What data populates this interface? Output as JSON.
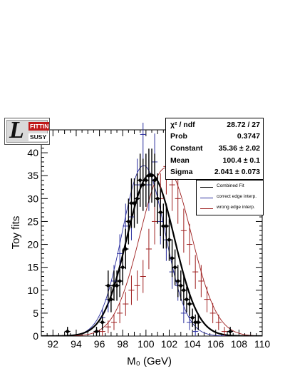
{
  "logo": {
    "top_text": "FITTINO",
    "bottom_text": "SUSY",
    "glyph": "L"
  },
  "stats": {
    "chi2_label": "χ² / ndf",
    "chi2_value": "28.72 / 27",
    "prob_label": "Prob",
    "prob_value": "0.3747",
    "constant_label": "Constant",
    "constant_value": "35.36 ± 2.02",
    "mean_label": "Mean",
    "mean_value": "100.4 ± 0.1",
    "sigma_label": "Sigma",
    "sigma_value": "2.041 ± 0.073"
  },
  "legend": [
    {
      "label": "Combined Fit",
      "color": "#000000"
    },
    {
      "label": "correct edge interp.",
      "color": "#2b2f9e"
    },
    {
      "label": "wrong edge interp.",
      "color": "#9e1f1f"
    }
  ],
  "chart_data": {
    "type": "scatter",
    "xlabel": "M₀ (GeV)",
    "ylabel": "Toy fits",
    "xlim": [
      91,
      110
    ],
    "ylim": [
      0,
      45
    ],
    "x_ticks": [
      92,
      94,
      96,
      98,
      100,
      102,
      104,
      106,
      108,
      110
    ],
    "y_ticks": [
      0,
      5,
      10,
      15,
      20,
      25,
      30,
      35,
      40
    ],
    "series": [
      {
        "name": "Combined Fit",
        "color": "#000000",
        "marker": "diamond",
        "x": [
          93.25,
          95.75,
          96.25,
          96.75,
          97.0,
          97.25,
          97.5,
          97.75,
          98.0,
          98.25,
          98.5,
          98.75,
          99.0,
          99.25,
          99.5,
          99.75,
          100.0,
          100.25,
          100.5,
          100.75,
          101.0,
          101.25,
          101.5,
          101.75,
          102.0,
          102.25,
          102.5,
          102.75,
          103.0,
          103.25,
          103.5,
          103.75,
          104.0,
          104.25,
          104.5,
          107.25
        ],
        "y": [
          1,
          1,
          3,
          11,
          8,
          11,
          11,
          12,
          15,
          19,
          25,
          29,
          29,
          30,
          34,
          33,
          34,
          35,
          35,
          34,
          30,
          27,
          24,
          24,
          21,
          17,
          15,
          12,
          11,
          10,
          8,
          7,
          4,
          3,
          3,
          1
        ],
        "err": [
          1,
          1,
          1.7,
          3.3,
          2.8,
          3.3,
          3.3,
          3.5,
          3.9,
          4.4,
          5.0,
          5.4,
          5.4,
          5.5,
          5.8,
          5.7,
          5.8,
          5.9,
          5.9,
          5.8,
          5.5,
          5.2,
          4.9,
          4.9,
          4.6,
          4.1,
          3.9,
          3.5,
          3.3,
          3.2,
          2.8,
          2.6,
          2.0,
          1.7,
          1.7,
          1
        ]
      },
      {
        "name": "correct edge interp.",
        "color": "#2b2f9e",
        "marker": "cross",
        "x": [
          95.75,
          96.25,
          96.75,
          97.25,
          97.75,
          98.25,
          98.75,
          99.25,
          99.75,
          100.25,
          100.75,
          101.25,
          101.75,
          102.25,
          102.75,
          103.25,
          103.75,
          104.25
        ],
        "y": [
          1,
          4,
          8,
          12,
          18,
          24,
          26,
          33,
          44,
          33,
          38,
          25,
          21,
          14,
          11,
          5,
          3,
          1
        ],
        "err": [
          1,
          2,
          2.8,
          3.5,
          4.2,
          4.9,
          5.1,
          5.7,
          6.6,
          5.7,
          6.2,
          5,
          4.6,
          3.7,
          3.3,
          2.2,
          1.7,
          1
        ]
      },
      {
        "name": "wrong edge interp.",
        "color": "#9e1f1f",
        "marker": "cross",
        "x": [
          96.25,
          96.75,
          97.25,
          97.75,
          98.25,
          98.75,
          99.25,
          99.75,
          100.25,
          100.75,
          101.25,
          101.75,
          102.25,
          102.75,
          103.25,
          103.75,
          104.25,
          104.75,
          105.25,
          105.75,
          106.25,
          106.75
        ],
        "y": [
          1,
          2,
          3,
          5,
          7,
          10,
          11,
          13,
          19,
          25,
          30,
          37,
          33,
          30,
          23,
          20,
          14,
          12,
          8,
          5,
          3,
          1
        ],
        "err": [
          1,
          1.4,
          1.7,
          2.2,
          2.6,
          3.2,
          3.3,
          3.6,
          4.4,
          5,
          5.5,
          6.1,
          5.7,
          5.5,
          4.8,
          4.5,
          3.7,
          3.5,
          2.8,
          2.2,
          1.7,
          1
        ]
      }
    ],
    "fits": [
      {
        "name": "Combined Fit",
        "color": "#000000",
        "constant": 35.36,
        "mean": 100.4,
        "sigma": 2.041,
        "width": 2.2
      },
      {
        "name": "correct edge interp.",
        "color": "#2b2f9e",
        "constant": 37.2,
        "mean": 99.8,
        "sigma": 1.85,
        "width": 0.9
      },
      {
        "name": "wrong edge interp.",
        "color": "#9e1f1f",
        "constant": 36.7,
        "mean": 101.7,
        "sigma": 2.2,
        "width": 0.9
      }
    ]
  }
}
